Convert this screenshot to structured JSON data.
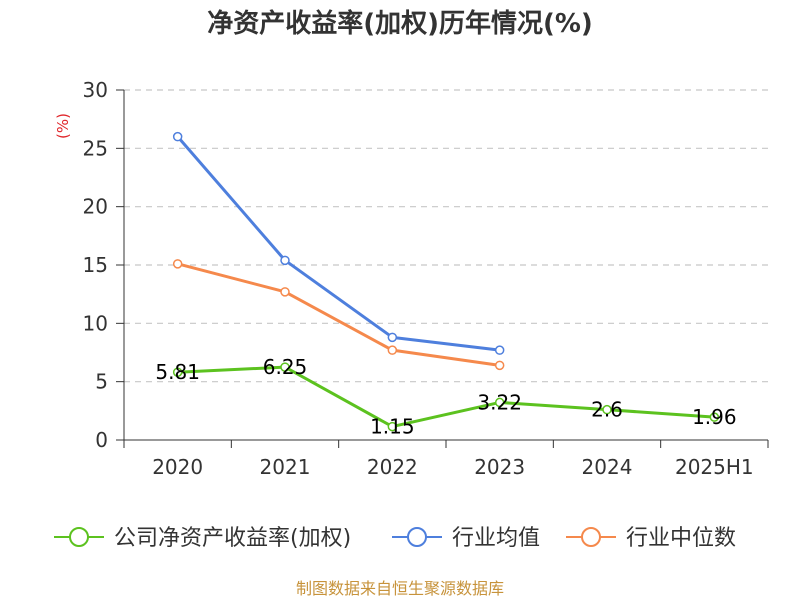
{
  "chart_data": {
    "type": "line",
    "title": "净资产收益率(加权)历年情况(%)",
    "ylabel": "(%)",
    "xlabel": "",
    "categories": [
      "2020",
      "2021",
      "2022",
      "2023",
      "2024",
      "2025H1"
    ],
    "ylim": [
      0,
      30
    ],
    "yticks": [
      0,
      5,
      10,
      15,
      20,
      25,
      30
    ],
    "grid": true,
    "legend_position": "bottom",
    "series": [
      {
        "name": "公司净资产收益率(加权)",
        "color": "#5cc21f",
        "values": [
          5.81,
          6.25,
          1.15,
          3.22,
          2.6,
          1.96
        ],
        "labels": [
          "5.81",
          "6.25",
          "1.15",
          "3.22",
          "2.6",
          "1.96"
        ]
      },
      {
        "name": "行业均值",
        "color": "#4e7fdd",
        "values": [
          26.0,
          15.4,
          8.8,
          7.7,
          null,
          null
        ]
      },
      {
        "name": "行业中位数",
        "color": "#f5894c",
        "values": [
          15.1,
          12.7,
          7.7,
          6.4,
          null,
          null
        ]
      }
    ],
    "source": "制图数据来自恒生聚源数据库"
  }
}
